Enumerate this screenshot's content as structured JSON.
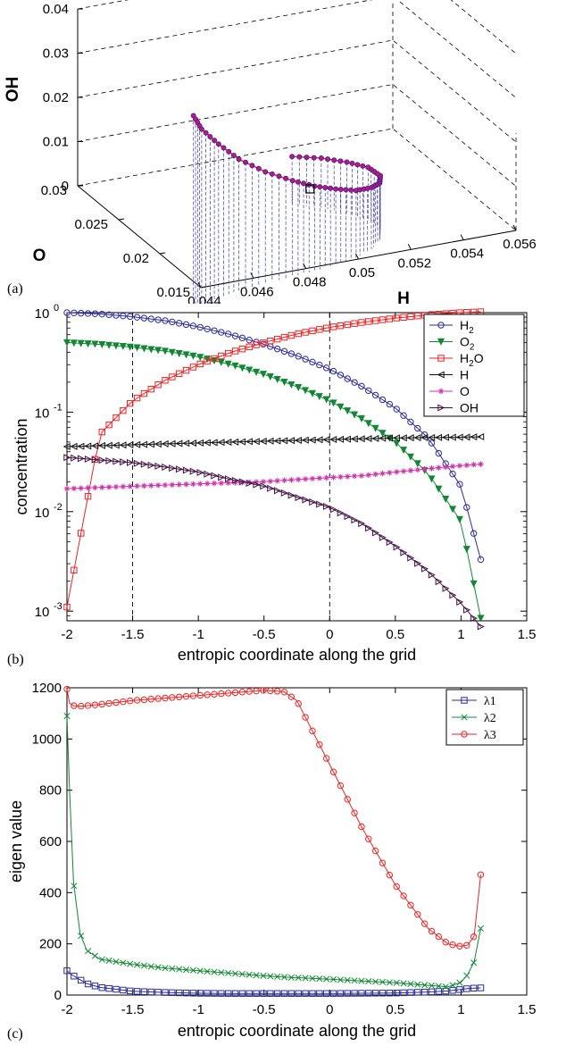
{
  "chart_data": [
    {
      "type": "line3d",
      "panel_label": "(a)",
      "xlabel": "H",
      "ylabel": "O",
      "zlabel": "OH",
      "x_ticks": [
        "0.044",
        "0.046",
        "0.048",
        "0.05",
        "0.052",
        "0.054",
        "0.056"
      ],
      "y_ticks": [
        "0.015",
        "0.02",
        "0.025",
        "0.03"
      ],
      "z_ticks": [
        "0",
        "0.01",
        "0.02",
        "0.03",
        "0.04"
      ],
      "xlim": [
        0.044,
        0.056
      ],
      "ylim": [
        0.015,
        0.03
      ],
      "zlim": [
        0,
        0.04
      ],
      "highlight_point": {
        "H": 0.0495,
        "O": 0.0193,
        "OH": 0.0098
      },
      "series": [
        {
          "color": "#cc1177",
          "marker_color": "#2a2a99",
          "points": [
            [
              0.0445,
              0.0175,
              0.0345
            ],
            [
              0.045,
              0.0181,
              0.03
            ],
            [
              0.0458,
              0.0186,
              0.025
            ],
            [
              0.0467,
              0.019,
              0.02
            ],
            [
              0.0478,
              0.0193,
              0.0155
            ],
            [
              0.0489,
              0.0195,
              0.012
            ],
            [
              0.0498,
              0.0197,
              0.0095
            ],
            [
              0.0507,
              0.02,
              0.0074
            ],
            [
              0.0516,
              0.0204,
              0.0055
            ],
            [
              0.0524,
              0.0211,
              0.0042
            ],
            [
              0.053,
              0.022,
              0.0032
            ],
            [
              0.0534,
              0.0232,
              0.0026
            ],
            [
              0.0534,
              0.0247,
              0.0022
            ],
            [
              0.053,
              0.026,
              0.0018
            ],
            [
              0.0524,
              0.0272,
              0.0015
            ],
            [
              0.0516,
              0.0282,
              0.0012
            ]
          ]
        }
      ]
    },
    {
      "type": "line",
      "panel_label": "(b)",
      "xlabel": "entropic coordinate along the grid",
      "ylabel": "concentration",
      "xlim": [
        -2,
        1.5
      ],
      "ylim": [
        0.0008,
        1.0
      ],
      "yscale": "log",
      "x_ticks": [
        "-2",
        "-1.5",
        "-1",
        "-0.5",
        "0",
        "0.5",
        "1",
        "1.5"
      ],
      "y_ticks": [
        {
          "base": "10",
          "exp": "0"
        },
        {
          "base": "10",
          "exp": "-1"
        },
        {
          "base": "10",
          "exp": "-2"
        },
        {
          "base": "10",
          "exp": "-3"
        }
      ],
      "vlines": [
        -1.5,
        0
      ],
      "legend": "top-right",
      "x": [
        -2.0,
        -1.75,
        -1.5,
        -1.25,
        -1.0,
        -0.75,
        -0.5,
        -0.25,
        0.0,
        0.25,
        0.5,
        0.75,
        1.0,
        1.15
      ],
      "series": [
        {
          "name": "H",
          "sub": "2",
          "color": "#2a2a99",
          "marker": "circle",
          "values": [
            1.0,
            0.97,
            0.91,
            0.83,
            0.72,
            0.6,
            0.48,
            0.37,
            0.27,
            0.18,
            0.11,
            0.055,
            0.018,
            0.0033
          ]
        },
        {
          "name": "O",
          "sub": "2",
          "color": "#118833",
          "marker": "tri-down",
          "values": [
            0.5,
            0.48,
            0.45,
            0.41,
            0.36,
            0.3,
            0.24,
            0.18,
            0.13,
            0.085,
            0.05,
            0.024,
            0.008,
            0.00085
          ]
        },
        {
          "name": "H",
          "sub": "2",
          "suffix": "O",
          "color": "#ee2222",
          "marker": "square",
          "values": [
            0.0011,
            0.06,
            0.13,
            0.21,
            0.3,
            0.4,
            0.5,
            0.61,
            0.71,
            0.8,
            0.88,
            0.95,
            1.0,
            1.02
          ]
        },
        {
          "name": "H",
          "color": "#111111",
          "marker": "tri-left",
          "values": [
            0.045,
            0.046,
            0.047,
            0.048,
            0.049,
            0.05,
            0.051,
            0.052,
            0.053,
            0.054,
            0.055,
            0.0555,
            0.056,
            0.0565
          ]
        },
        {
          "name": "O",
          "color": "#cc33aa",
          "marker": "asterisk",
          "values": [
            0.017,
            0.0175,
            0.018,
            0.0185,
            0.019,
            0.0195,
            0.02,
            0.021,
            0.022,
            0.023,
            0.025,
            0.027,
            0.029,
            0.03
          ]
        },
        {
          "name": "OH",
          "color": "#441144",
          "marker": "tri-right",
          "values": [
            0.035,
            0.033,
            0.031,
            0.028,
            0.025,
            0.021,
            0.018,
            0.014,
            0.011,
            0.0075,
            0.0045,
            0.0025,
            0.0012,
            0.0007
          ]
        }
      ]
    },
    {
      "type": "line",
      "panel_label": "(c)",
      "xlabel": "entropic coordinate along the grid",
      "ylabel": "eigen value",
      "xlim": [
        -2,
        1.5
      ],
      "ylim": [
        0,
        1200
      ],
      "x_ticks": [
        "-2",
        "-1.5",
        "-1",
        "-0.5",
        "0",
        "0.5",
        "1",
        "1.5"
      ],
      "y_ticks": [
        "0",
        "200",
        "400",
        "600",
        "800",
        "1000",
        "1200"
      ],
      "legend": "top-right",
      "x": [
        -2.0,
        -1.98,
        -1.95,
        -1.9,
        -1.85,
        -1.75,
        -1.5,
        -1.25,
        -1.0,
        -0.75,
        -0.5,
        -0.35,
        -0.25,
        0.0,
        0.25,
        0.5,
        0.75,
        0.9,
        1.0,
        1.05,
        1.1,
        1.15
      ],
      "series": [
        {
          "name": "λ1",
          "color": "#2a2a99",
          "marker": "square",
          "values": [
            95,
            85,
            75,
            60,
            45,
            30,
            15,
            10,
            7,
            6,
            6,
            6,
            6,
            6,
            7,
            8,
            12,
            16,
            22,
            25,
            27,
            28
          ]
        },
        {
          "name": "λ2",
          "color": "#118833",
          "marker": "cross",
          "values": [
            1090,
            800,
            440,
            240,
            175,
            140,
            120,
            105,
            95,
            85,
            75,
            70,
            68,
            62,
            55,
            48,
            38,
            32,
            50,
            80,
            130,
            260
          ]
        },
        {
          "name": "λ3",
          "color": "#ee2222",
          "marker": "circle",
          "values": [
            1195,
            1140,
            1130,
            1128,
            1130,
            1135,
            1150,
            1160,
            1170,
            1180,
            1190,
            1185,
            1150,
            900,
            650,
            430,
            260,
            200,
            190,
            195,
            230,
            470
          ]
        }
      ]
    }
  ]
}
